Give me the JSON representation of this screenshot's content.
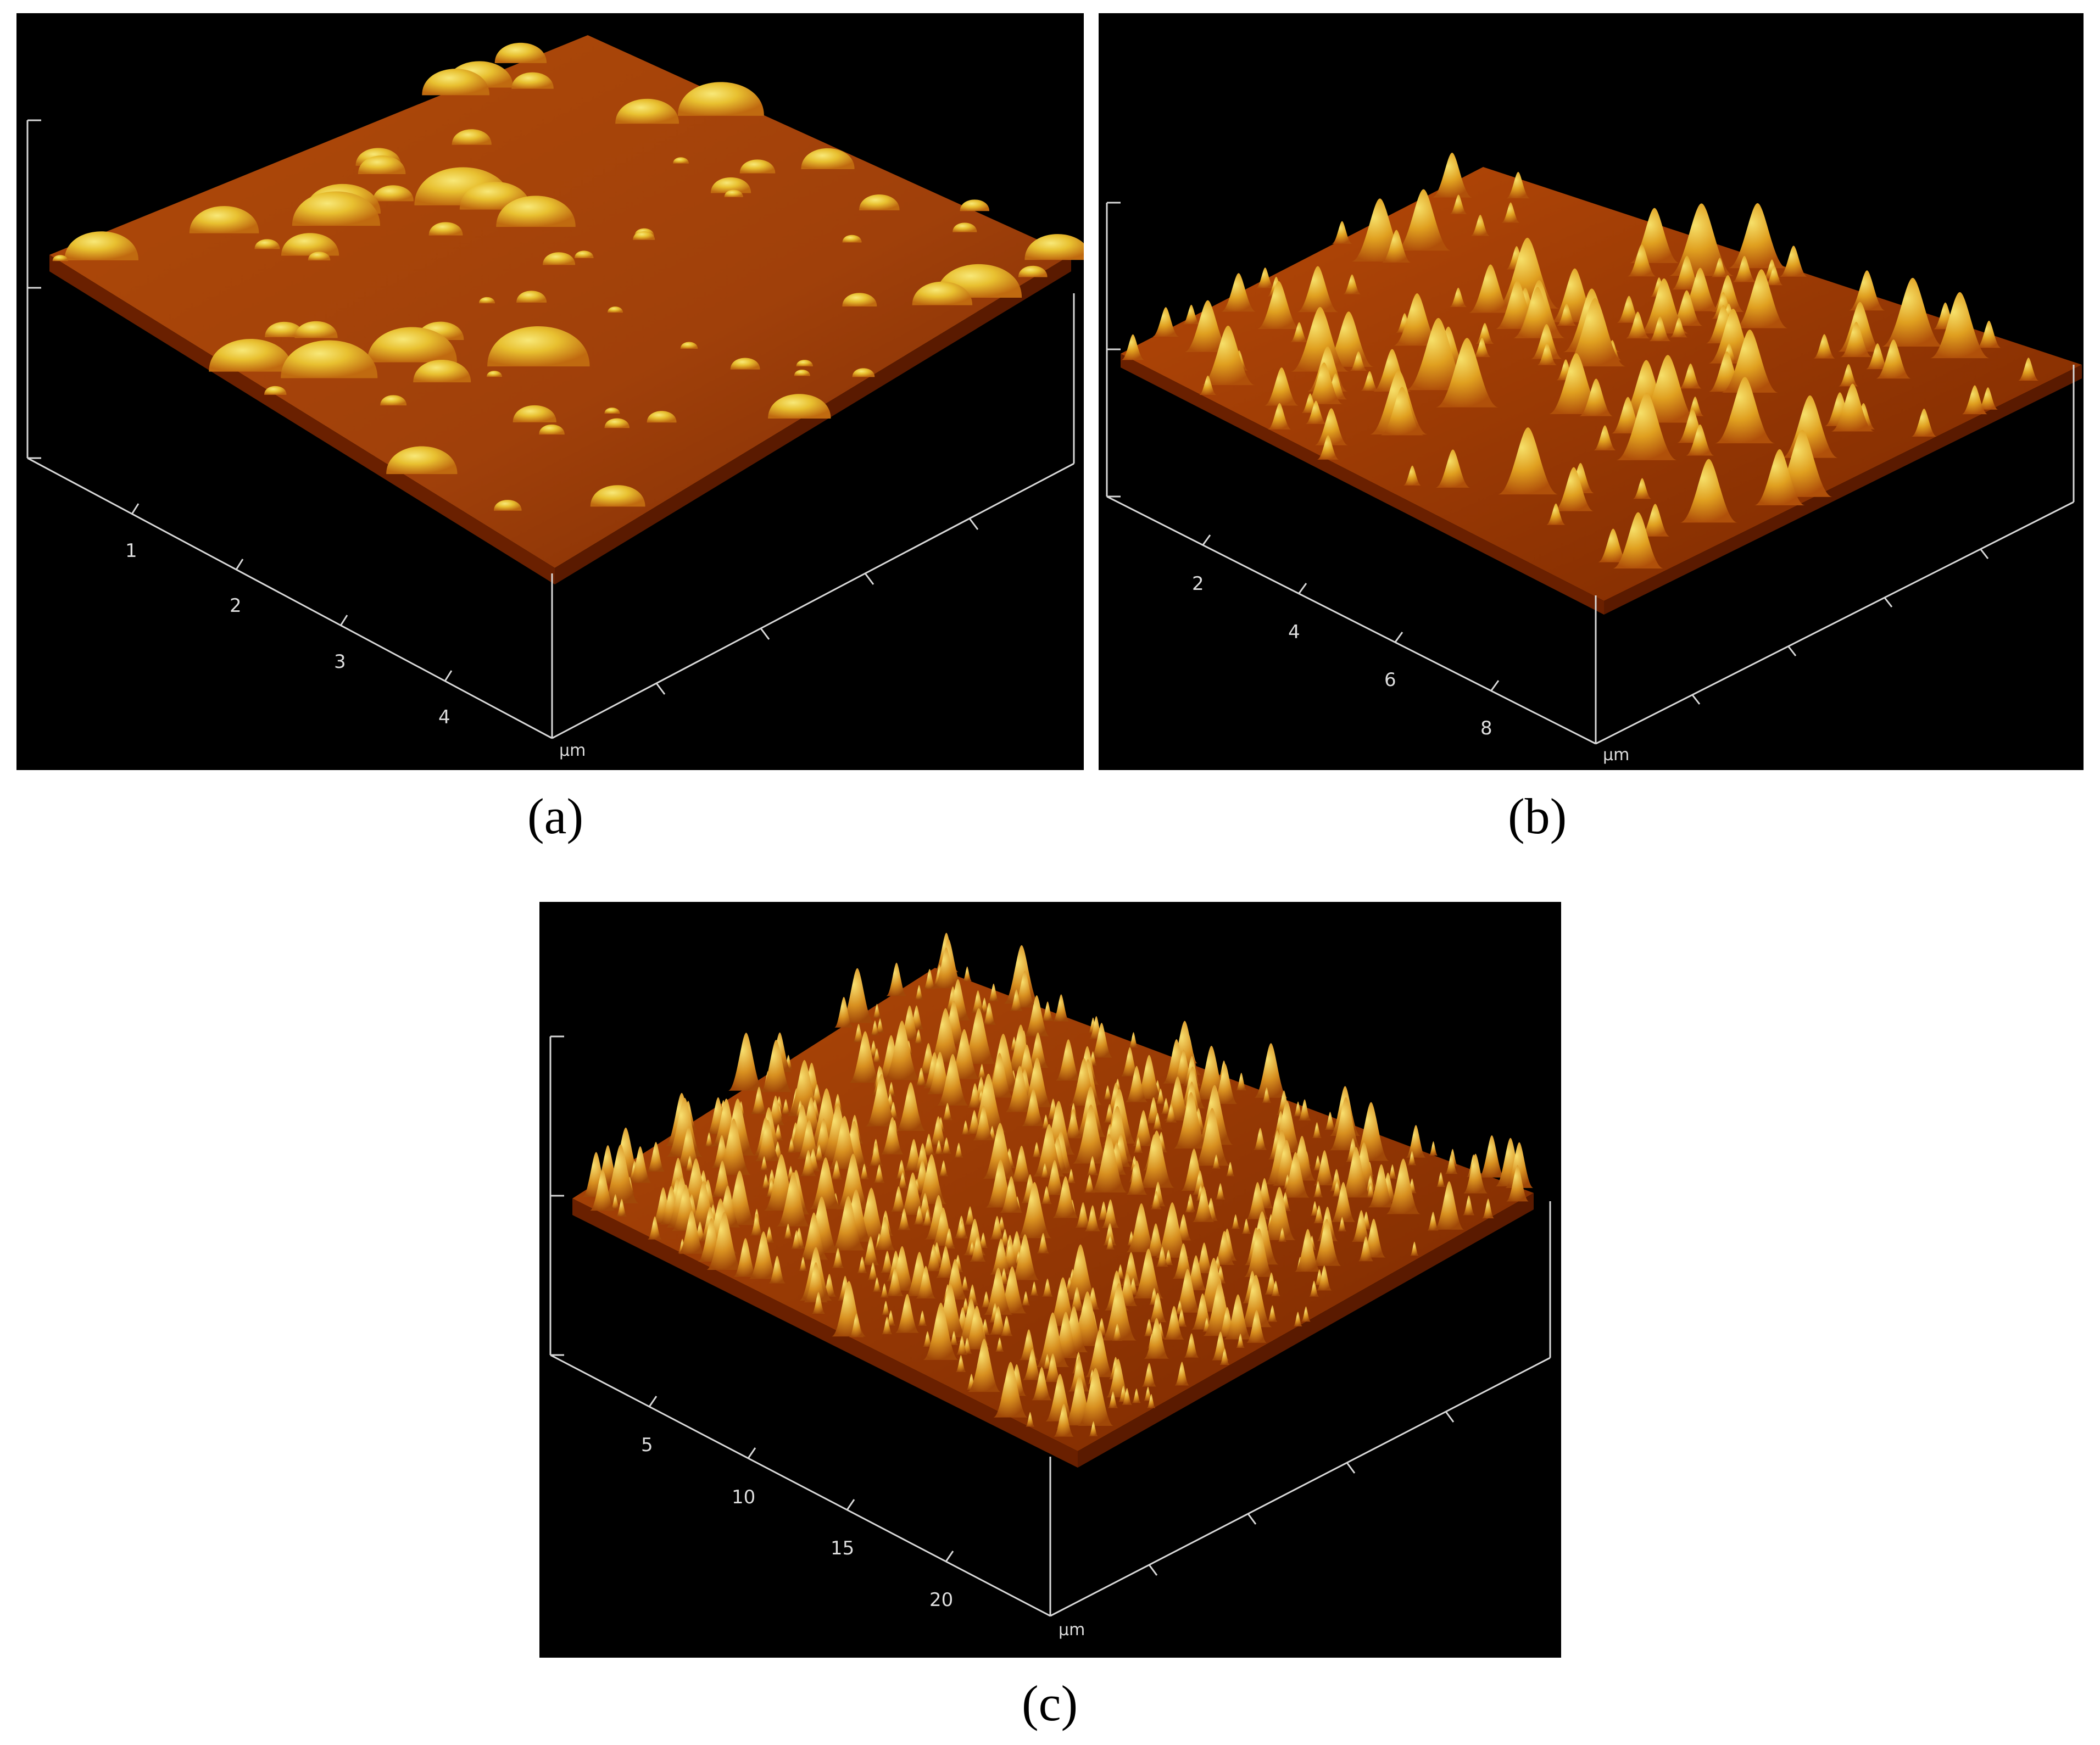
{
  "figure": {
    "panels": [
      {
        "id": "a",
        "caption": "(a)",
        "x_ticks": [
          "1",
          "2",
          "3",
          "4"
        ],
        "unit": "µm",
        "description_colors": {
          "background": "#000000",
          "surface_low": "#8a2a00",
          "surface_mid": "#c85a10",
          "surface_high": "#f0d040"
        }
      },
      {
        "id": "b",
        "caption": "(b)",
        "x_ticks": [
          "2",
          "4",
          "6",
          "8"
        ],
        "unit": "µm",
        "description_colors": {
          "background": "#000000",
          "surface_low": "#8a2a00",
          "surface_mid": "#c85a10",
          "surface_high": "#f0d040"
        }
      },
      {
        "id": "c",
        "caption": "(c)",
        "x_ticks": [
          "5",
          "10",
          "15",
          "20"
        ],
        "unit": "µm",
        "description_colors": {
          "background": "#000000",
          "surface_low": "#8a2a00",
          "surface_mid": "#c85a10",
          "surface_high": "#f0d040"
        }
      }
    ]
  }
}
